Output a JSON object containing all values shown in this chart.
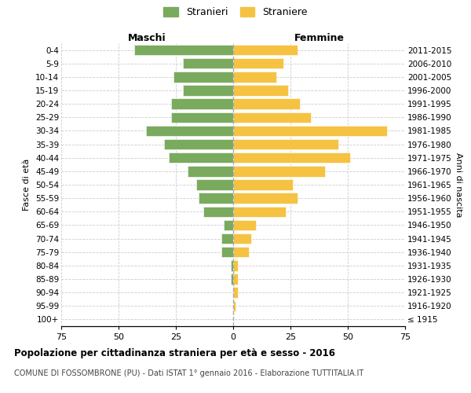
{
  "age_groups": [
    "0-4",
    "5-9",
    "10-14",
    "15-19",
    "20-24",
    "25-29",
    "30-34",
    "35-39",
    "40-44",
    "45-49",
    "50-54",
    "55-59",
    "60-64",
    "65-69",
    "70-74",
    "75-79",
    "80-84",
    "85-89",
    "90-94",
    "95-99",
    "100+"
  ],
  "birth_years": [
    "2011-2015",
    "2006-2010",
    "2001-2005",
    "1996-2000",
    "1991-1995",
    "1986-1990",
    "1981-1985",
    "1976-1980",
    "1971-1975",
    "1966-1970",
    "1961-1965",
    "1956-1960",
    "1951-1955",
    "1946-1950",
    "1941-1945",
    "1936-1940",
    "1931-1935",
    "1926-1930",
    "1921-1925",
    "1916-1920",
    "≤ 1915"
  ],
  "maschi": [
    43,
    22,
    26,
    22,
    27,
    27,
    38,
    30,
    28,
    20,
    16,
    15,
    13,
    4,
    5,
    5,
    1,
    1,
    0,
    0,
    0
  ],
  "femmine": [
    28,
    22,
    19,
    24,
    29,
    34,
    67,
    46,
    51,
    40,
    26,
    28,
    23,
    10,
    8,
    7,
    2,
    2,
    2,
    1,
    0
  ],
  "maschi_color": "#7aaa5e",
  "femmine_color": "#f5c242",
  "bar_edge_color": "white",
  "background_color": "#ffffff",
  "grid_color": "#cccccc",
  "title": "Popolazione per cittadinanza straniera per età e sesso - 2016",
  "subtitle": "COMUNE DI FOSSOMBRONE (PU) - Dati ISTAT 1° gennaio 2016 - Elaborazione TUTTITALIA.IT",
  "xlabel_left": "Maschi",
  "xlabel_right": "Femmine",
  "ylabel_left": "Fasce di età",
  "ylabel_right": "Anni di nascita",
  "legend_stranieri": "Stranieri",
  "legend_straniere": "Straniere",
  "xlim": 75
}
